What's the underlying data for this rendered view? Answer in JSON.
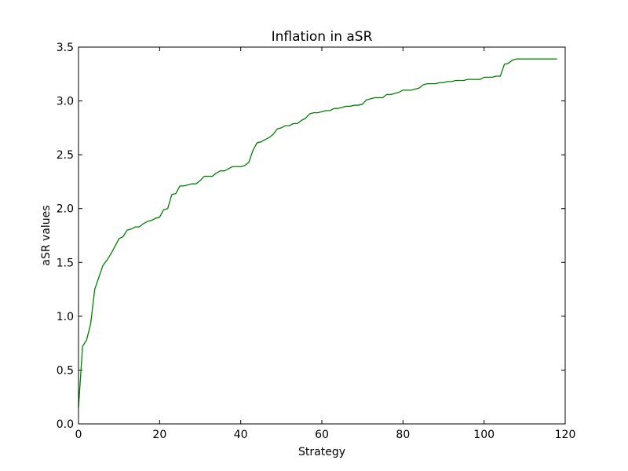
{
  "chart_data": {
    "type": "line",
    "title": "Inflation in aSR",
    "xlabel": "Strategy",
    "ylabel": "aSR values",
    "xlim": [
      0,
      120
    ],
    "ylim": [
      0,
      3.5
    ],
    "xticks": [
      0,
      20,
      40,
      60,
      80,
      100,
      120
    ],
    "yticks": [
      0.0,
      0.5,
      1.0,
      1.5,
      2.0,
      2.5,
      3.0,
      3.5
    ],
    "xtick_labels": [
      "0",
      "20",
      "40",
      "60",
      "80",
      "100",
      "120"
    ],
    "ytick_labels": [
      "0.0",
      "0.5",
      "1.0",
      "1.5",
      "2.0",
      "2.5",
      "3.0",
      "3.5"
    ],
    "grid": false,
    "series": [
      {
        "color": "#008000",
        "points": [
          [
            0,
            0.15
          ],
          [
            1,
            0.72
          ],
          [
            2,
            0.78
          ],
          [
            3,
            0.93
          ],
          [
            4,
            1.25
          ],
          [
            5,
            1.36
          ],
          [
            6,
            1.47
          ],
          [
            7,
            1.52
          ],
          [
            8,
            1.58
          ],
          [
            9,
            1.65
          ],
          [
            10,
            1.72
          ],
          [
            11,
            1.74
          ],
          [
            12,
            1.8
          ],
          [
            13,
            1.81
          ],
          [
            14,
            1.83
          ],
          [
            15,
            1.83
          ],
          [
            16,
            1.86
          ],
          [
            17,
            1.88
          ],
          [
            18,
            1.89
          ],
          [
            19,
            1.91
          ],
          [
            20,
            1.92
          ],
          [
            21,
            1.99
          ],
          [
            22,
            2.0
          ],
          [
            23,
            2.13
          ],
          [
            24,
            2.14
          ],
          [
            25,
            2.21
          ],
          [
            26,
            2.21
          ],
          [
            27,
            2.22
          ],
          [
            28,
            2.23
          ],
          [
            29,
            2.23
          ],
          [
            30,
            2.26
          ],
          [
            31,
            2.3
          ],
          [
            32,
            2.3
          ],
          [
            33,
            2.3
          ],
          [
            34,
            2.33
          ],
          [
            35,
            2.35
          ],
          [
            36,
            2.35
          ],
          [
            37,
            2.37
          ],
          [
            38,
            2.39
          ],
          [
            39,
            2.39
          ],
          [
            40,
            2.39
          ],
          [
            41,
            2.4
          ],
          [
            42,
            2.43
          ],
          [
            43,
            2.54
          ],
          [
            44,
            2.61
          ],
          [
            45,
            2.62
          ],
          [
            46,
            2.64
          ],
          [
            47,
            2.66
          ],
          [
            48,
            2.69
          ],
          [
            49,
            2.74
          ],
          [
            50,
            2.75
          ],
          [
            51,
            2.77
          ],
          [
            52,
            2.77
          ],
          [
            53,
            2.79
          ],
          [
            54,
            2.79
          ],
          [
            55,
            2.82
          ],
          [
            56,
            2.84
          ],
          [
            57,
            2.88
          ],
          [
            58,
            2.89
          ],
          [
            59,
            2.89
          ],
          [
            60,
            2.9
          ],
          [
            61,
            2.91
          ],
          [
            62,
            2.91
          ],
          [
            63,
            2.93
          ],
          [
            64,
            2.93
          ],
          [
            65,
            2.94
          ],
          [
            66,
            2.95
          ],
          [
            67,
            2.95
          ],
          [
            68,
            2.96
          ],
          [
            69,
            2.96
          ],
          [
            70,
            2.97
          ],
          [
            71,
            3.01
          ],
          [
            72,
            3.02
          ],
          [
            73,
            3.03
          ],
          [
            74,
            3.03
          ],
          [
            75,
            3.03
          ],
          [
            76,
            3.06
          ],
          [
            77,
            3.06
          ],
          [
            78,
            3.07
          ],
          [
            79,
            3.08
          ],
          [
            80,
            3.1
          ],
          [
            81,
            3.1
          ],
          [
            82,
            3.1
          ],
          [
            83,
            3.11
          ],
          [
            84,
            3.12
          ],
          [
            85,
            3.15
          ],
          [
            86,
            3.16
          ],
          [
            87,
            3.16
          ],
          [
            88,
            3.16
          ],
          [
            89,
            3.17
          ],
          [
            90,
            3.17
          ],
          [
            91,
            3.18
          ],
          [
            92,
            3.18
          ],
          [
            93,
            3.19
          ],
          [
            94,
            3.19
          ],
          [
            95,
            3.19
          ],
          [
            96,
            3.2
          ],
          [
            97,
            3.2
          ],
          [
            98,
            3.2
          ],
          [
            99,
            3.2
          ],
          [
            100,
            3.22
          ],
          [
            101,
            3.22
          ],
          [
            102,
            3.22
          ],
          [
            103,
            3.23
          ],
          [
            104,
            3.23
          ],
          [
            105,
            3.34
          ],
          [
            106,
            3.35
          ],
          [
            107,
            3.38
          ],
          [
            108,
            3.39
          ],
          [
            109,
            3.39
          ],
          [
            110,
            3.39
          ],
          [
            111,
            3.39
          ],
          [
            112,
            3.39
          ],
          [
            113,
            3.39
          ],
          [
            114,
            3.39
          ],
          [
            115,
            3.39
          ],
          [
            116,
            3.39
          ],
          [
            117,
            3.39
          ],
          [
            118,
            3.39
          ]
        ]
      }
    ]
  }
}
